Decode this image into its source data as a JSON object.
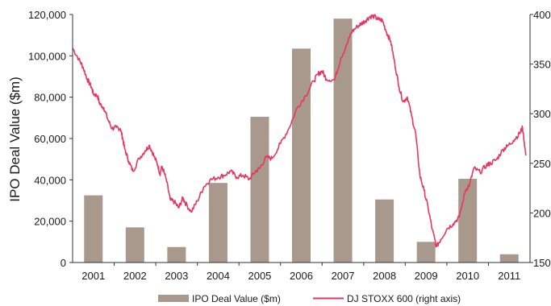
{
  "chart_data": {
    "type": "bar",
    "ylabel": "IPO Deal Value ($m)",
    "categories": [
      "2001",
      "2002",
      "2003",
      "2004",
      "2005",
      "2006",
      "2007",
      "2008",
      "2009",
      "2010",
      "2011"
    ],
    "ylim": [
      0,
      120000
    ],
    "y2lim": [
      150,
      400
    ],
    "y_ticks": [
      "0",
      "20,000",
      "40,000",
      "60,000",
      "80,000",
      "100,000",
      "120,000"
    ],
    "y2_ticks": [
      "150",
      "200",
      "250",
      "300",
      "350",
      "400"
    ],
    "grid": false,
    "legend_position": "bottom",
    "colors": {
      "bar": "#a8998c",
      "line": "#e8365f"
    },
    "series": [
      {
        "name": "IPO Deal Value ($m)",
        "axis": "left",
        "type": "bar",
        "values": [
          32500,
          17000,
          7500,
          38500,
          70500,
          103500,
          118000,
          30500,
          10000,
          40500,
          4000
        ]
      },
      {
        "name": "DJ STOXX 600 (right axis)",
        "axis": "right",
        "type": "line",
        "x": [
          2000.0,
          2000.1,
          2000.2,
          2000.35,
          2000.5,
          2000.65,
          2000.75,
          2000.85,
          2000.95,
          2001.0,
          2001.1,
          2001.15,
          2001.25,
          2001.35,
          2001.45,
          2001.55,
          2001.65,
          2001.7,
          2001.75,
          2001.85,
          2001.95,
          2002.1,
          2002.25,
          2002.35,
          2002.45,
          2002.55,
          2002.6,
          2002.65,
          2002.75,
          2002.85,
          2002.95,
          2003.05,
          2003.15,
          2003.2,
          2003.35,
          2003.5,
          2003.65,
          2003.8,
          2004.0,
          2004.15,
          2004.3,
          2004.45,
          2004.6,
          2004.75,
          2004.9,
          2005.0,
          2005.15,
          2005.3,
          2005.5,
          2005.7,
          2005.9,
          2006.1,
          2006.3,
          2006.4,
          2006.5,
          2006.6,
          2006.8,
          2006.95,
          2007.1,
          2007.2,
          2007.35,
          2007.45,
          2007.55,
          2007.65,
          2007.75,
          2007.85,
          2007.95,
          2008.05,
          2008.15,
          2008.25,
          2008.35,
          2008.45,
          2008.55,
          2008.65,
          2008.75,
          2008.85,
          2008.95,
          2009.05,
          2009.15,
          2009.25,
          2009.35,
          2009.5,
          2009.65,
          2009.8,
          2009.95,
          2010.05,
          2010.15,
          2010.3,
          2010.45,
          2010.55,
          2010.7,
          2010.85,
          2010.95,
          2011.1,
          2011.25,
          2011.32,
          2011.4
        ],
        "values": [
          360,
          356,
          351,
          358,
          366,
          355,
          347,
          335,
          327,
          320,
          318,
          310,
          306,
          294,
          285,
          286,
          285,
          276,
          265,
          252,
          242,
          255,
          263,
          268,
          258,
          248,
          239,
          247,
          234,
          213,
          211,
          205,
          215,
          211,
          201,
          212,
          226,
          233,
          236,
          238,
          242,
          236,
          238,
          234,
          242,
          245,
          256,
          255,
          270,
          285,
          306,
          318,
          333,
          340,
          343,
          335,
          334,
          356,
          370,
          382,
          388,
          391,
          394,
          398,
          398,
          395,
          394,
          382,
          373,
          350,
          327,
          312,
          317,
          298,
          280,
          238,
          223,
          205,
          183,
          166,
          173,
          184,
          189,
          196,
          223,
          229,
          245,
          241,
          248,
          250,
          254,
          264,
          267,
          273,
          280,
          286,
          258
        ]
      }
    ]
  }
}
